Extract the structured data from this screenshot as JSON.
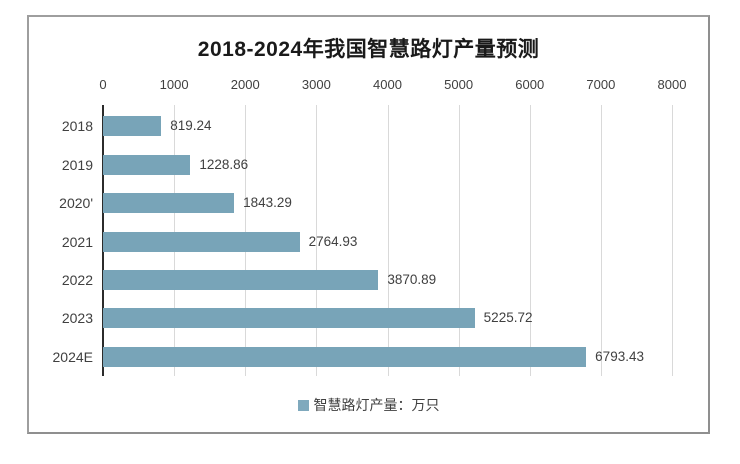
{
  "chart_data": {
    "type": "bar",
    "orientation": "horizontal",
    "title": "2018-2024年我国智慧路灯产量预测",
    "categories": [
      "2018",
      "2019",
      "2020'",
      "2021",
      "2022",
      "2023",
      "2024E"
    ],
    "values": [
      819.24,
      1228.86,
      1843.29,
      2764.93,
      3870.89,
      5225.72,
      6793.43
    ],
    "value_labels": [
      "819.24",
      "1228.86",
      "1843.29",
      "2764.93",
      "3870.89",
      "5225.72",
      "6793.43"
    ],
    "x_ticks": [
      0,
      1000,
      2000,
      3000,
      4000,
      5000,
      6000,
      7000,
      8000
    ],
    "x_tick_labels": [
      "0",
      "1000",
      "2000",
      "3000",
      "4000",
      "5000",
      "6000",
      "7000",
      "8000"
    ],
    "xlim": [
      0,
      8000
    ],
    "grid": "vertical",
    "legend": [
      "智慧路灯产量：万只"
    ],
    "legend_position": "bottom",
    "colors": {
      "bar": "#78A4B8",
      "legend_marker": "#7FA9BD",
      "gridline": "#D9D9D9",
      "axis_line": "#2b2b2b",
      "text": "#404040",
      "title": "#1A1A1A",
      "panel_border": "#9E9E9E"
    }
  }
}
